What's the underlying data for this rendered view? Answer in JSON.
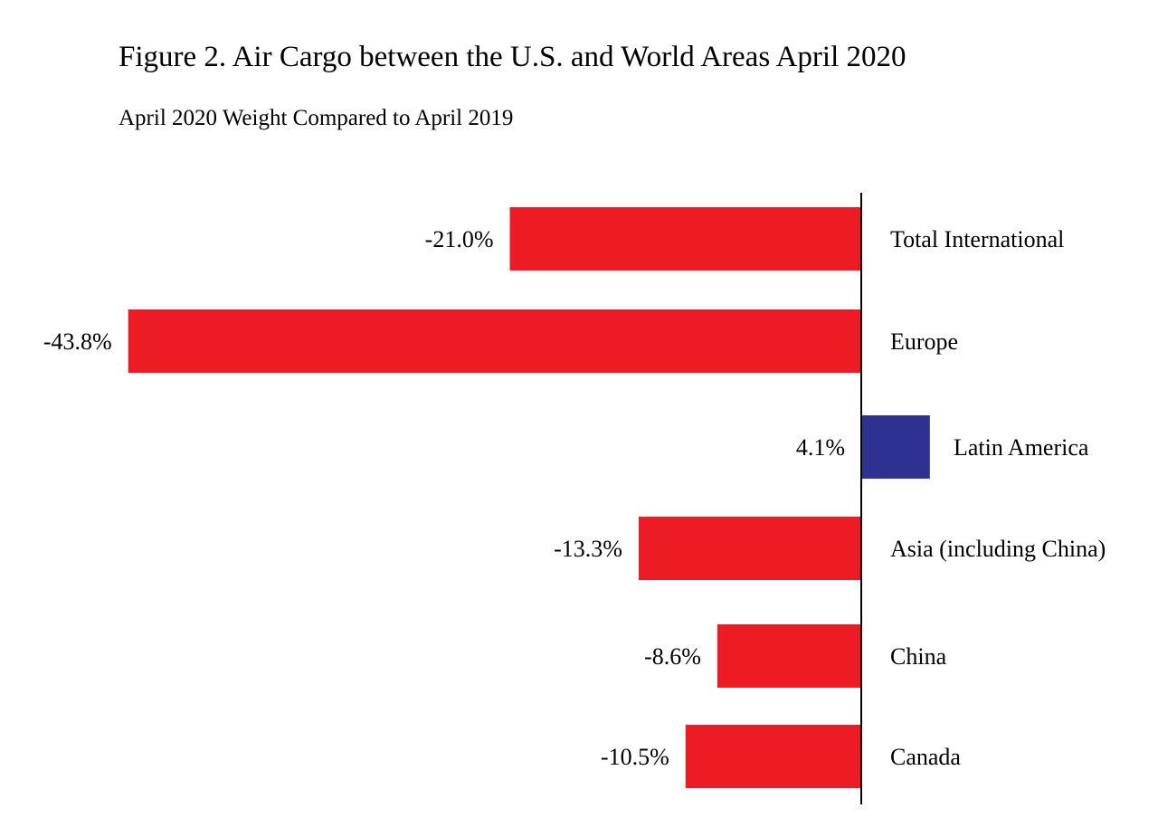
{
  "title": "Figure 2. Air Cargo between the U.S. and World Areas April 2020",
  "subtitle": "April 2020 Weight Compared to April 2019",
  "colors": {
    "negative": "#ed1c24",
    "positive": "#2e3192",
    "axis": "#000000"
  },
  "chart_data": {
    "type": "bar",
    "orientation": "horizontal",
    "title": "Figure 2. Air Cargo between the U.S. and World Areas April 2020",
    "subtitle": "April 2020 Weight Compared to April 2019",
    "categories": [
      "Total International",
      "Europe",
      "Latin America",
      "Asia (including China)",
      "China",
      "Canada"
    ],
    "values": [
      -21.0,
      -43.8,
      4.1,
      -13.3,
      -8.6,
      -10.5
    ],
    "data_labels": [
      "-21.0%",
      "-43.8%",
      "4.1%",
      "-13.3%",
      "-8.6%",
      "-10.5%"
    ],
    "unit": "%",
    "xlim": [
      -45,
      15
    ],
    "grid": false,
    "legend": "none"
  }
}
